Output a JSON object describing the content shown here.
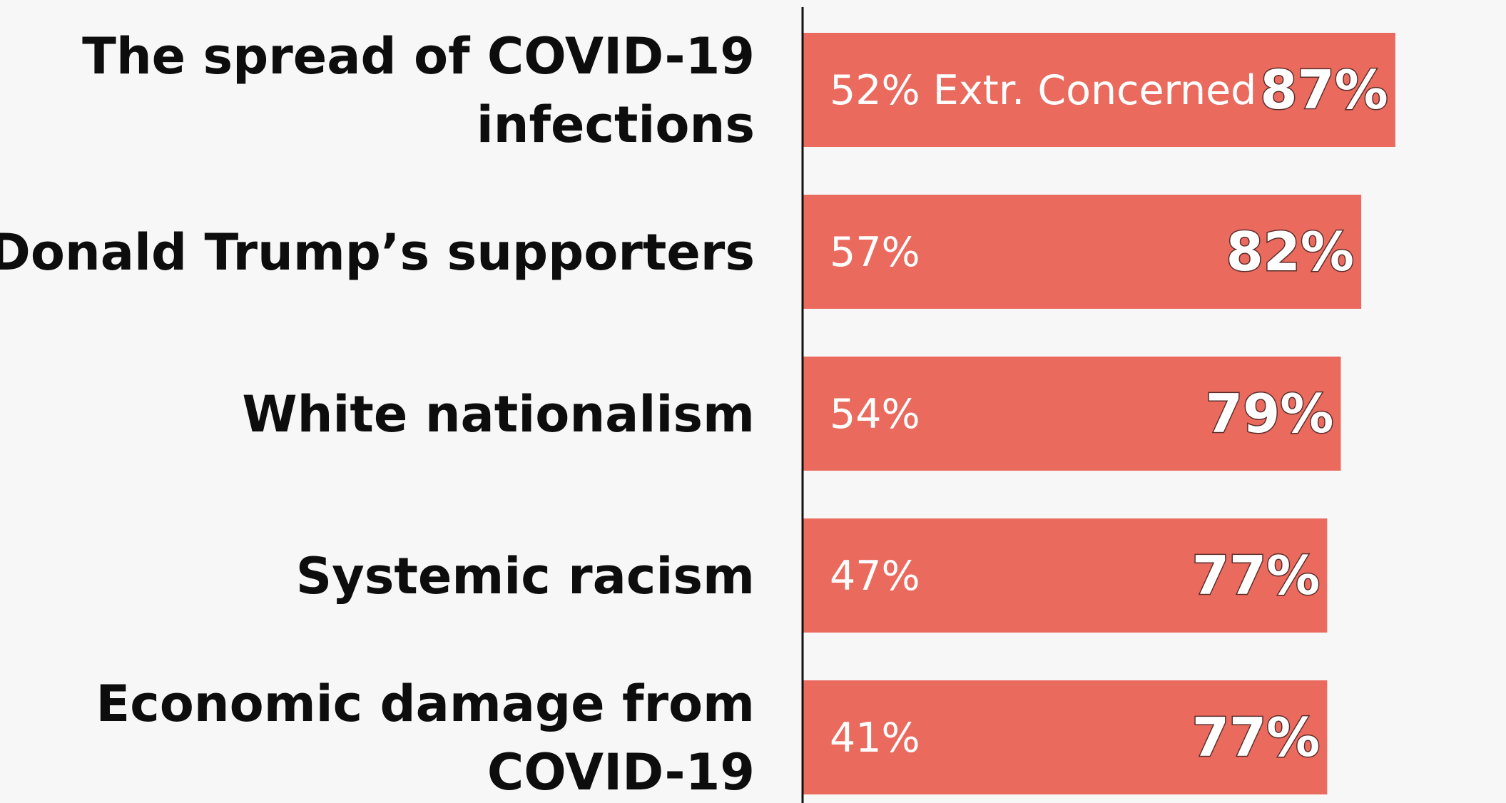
{
  "colors": {
    "bar": "#ea6a5e",
    "background": "#f7f7f7",
    "axis": "#111111",
    "label": "#0d0d0d"
  },
  "chart_data": {
    "type": "bar",
    "orientation": "horizontal",
    "categories": [
      [
        "The spread of COVID-19",
        "infections"
      ],
      [
        "Donald Trump’s supporters"
      ],
      [
        "White nationalism"
      ],
      [
        "Systemic racism"
      ],
      [
        "Economic damage from",
        "COVID-19"
      ]
    ],
    "series": [
      {
        "values": [
          87,
          82,
          79,
          77,
          77
        ],
        "labels": [
          "87%",
          "82%",
          "79%",
          "77%",
          "77%"
        ]
      }
    ],
    "extremely_concerned": {
      "values": [
        52,
        57,
        54,
        47,
        41
      ],
      "labels": [
        "52% Extr. Concerned",
        "57%",
        "54%",
        "47%",
        "41%"
      ]
    },
    "xlim": [
      0,
      100
    ],
    "grid": false,
    "legend": "none"
  }
}
